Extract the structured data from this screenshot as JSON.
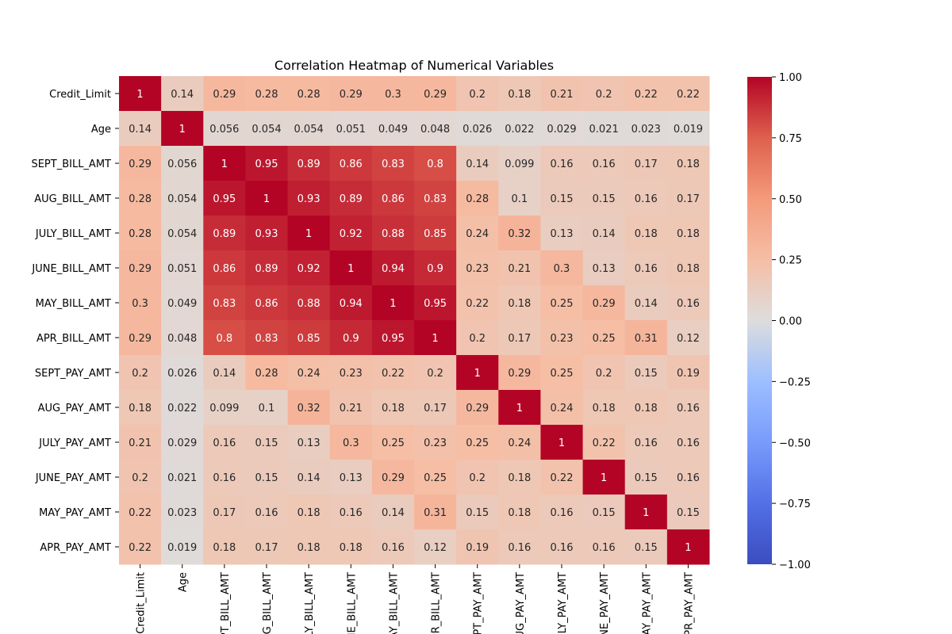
{
  "chart_data": {
    "type": "heatmap",
    "title": "Correlation Heatmap of Numerical Variables",
    "xlabel": "",
    "ylabel": "",
    "colormap": "coolwarm",
    "vmin": -1.0,
    "vmax": 1.0,
    "variables": [
      "Credit_Limit",
      "Age",
      "SEPT_BILL_AMT",
      "AUG_BILL_AMT",
      "JULY_BILL_AMT",
      "JUNE_BILL_AMT",
      "MAY_BILL_AMT",
      "APR_BILL_AMT",
      "SEPT_PAY_AMT",
      "AUG_PAY_AMT",
      "JULY_PAY_AMT",
      "JUNE_PAY_AMT",
      "MAY_PAY_AMT",
      "APR_PAY_AMT"
    ],
    "matrix": [
      [
        "1",
        "0.14",
        "0.29",
        "0.28",
        "0.28",
        "0.29",
        "0.3",
        "0.29",
        "0.2",
        "0.18",
        "0.21",
        "0.2",
        "0.22",
        "0.22"
      ],
      [
        "0.14",
        "1",
        "0.056",
        "0.054",
        "0.054",
        "0.051",
        "0.049",
        "0.048",
        "0.026",
        "0.022",
        "0.029",
        "0.021",
        "0.023",
        "0.019"
      ],
      [
        "0.29",
        "0.056",
        "1",
        "0.95",
        "0.89",
        "0.86",
        "0.83",
        "0.8",
        "0.14",
        "0.099",
        "0.16",
        "0.16",
        "0.17",
        "0.18"
      ],
      [
        "0.28",
        "0.054",
        "0.95",
        "1",
        "0.93",
        "0.89",
        "0.86",
        "0.83",
        "0.28",
        "0.1",
        "0.15",
        "0.15",
        "0.16",
        "0.17"
      ],
      [
        "0.28",
        "0.054",
        "0.89",
        "0.93",
        "1",
        "0.92",
        "0.88",
        "0.85",
        "0.24",
        "0.32",
        "0.13",
        "0.14",
        "0.18",
        "0.18"
      ],
      [
        "0.29",
        "0.051",
        "0.86",
        "0.89",
        "0.92",
        "1",
        "0.94",
        "0.9",
        "0.23",
        "0.21",
        "0.3",
        "0.13",
        "0.16",
        "0.18"
      ],
      [
        "0.3",
        "0.049",
        "0.83",
        "0.86",
        "0.88",
        "0.94",
        "1",
        "0.95",
        "0.22",
        "0.18",
        "0.25",
        "0.29",
        "0.14",
        "0.16"
      ],
      [
        "0.29",
        "0.048",
        "0.8",
        "0.83",
        "0.85",
        "0.9",
        "0.95",
        "1",
        "0.2",
        "0.17",
        "0.23",
        "0.25",
        "0.31",
        "0.12"
      ],
      [
        "0.2",
        "0.026",
        "0.14",
        "0.28",
        "0.24",
        "0.23",
        "0.22",
        "0.2",
        "1",
        "0.29",
        "0.25",
        "0.2",
        "0.15",
        "0.19"
      ],
      [
        "0.18",
        "0.022",
        "0.099",
        "0.1",
        "0.32",
        "0.21",
        "0.18",
        "0.17",
        "0.29",
        "1",
        "0.24",
        "0.18",
        "0.18",
        "0.16"
      ],
      [
        "0.21",
        "0.029",
        "0.16",
        "0.15",
        "0.13",
        "0.3",
        "0.25",
        "0.23",
        "0.25",
        "0.24",
        "1",
        "0.22",
        "0.16",
        "0.16"
      ],
      [
        "0.2",
        "0.021",
        "0.16",
        "0.15",
        "0.14",
        "0.13",
        "0.29",
        "0.25",
        "0.2",
        "0.18",
        "0.22",
        "1",
        "0.15",
        "0.16"
      ],
      [
        "0.22",
        "0.023",
        "0.17",
        "0.16",
        "0.18",
        "0.16",
        "0.14",
        "0.31",
        "0.15",
        "0.18",
        "0.16",
        "0.15",
        "1",
        "0.15"
      ],
      [
        "0.22",
        "0.019",
        "0.18",
        "0.17",
        "0.18",
        "0.18",
        "0.16",
        "0.12",
        "0.19",
        "0.16",
        "0.16",
        "0.16",
        "0.15",
        "1"
      ]
    ],
    "colorbar_ticks": [
      "1.00",
      "0.75",
      "0.50",
      "0.25",
      "0.00",
      "−0.25",
      "−0.50",
      "−0.75",
      "−1.00"
    ],
    "colorbar_tick_values": [
      1.0,
      0.75,
      0.5,
      0.25,
      0.0,
      -0.25,
      -0.5,
      -0.75,
      -1.0
    ],
    "annot": true,
    "grid": false,
    "legend": "colorbar-right"
  }
}
